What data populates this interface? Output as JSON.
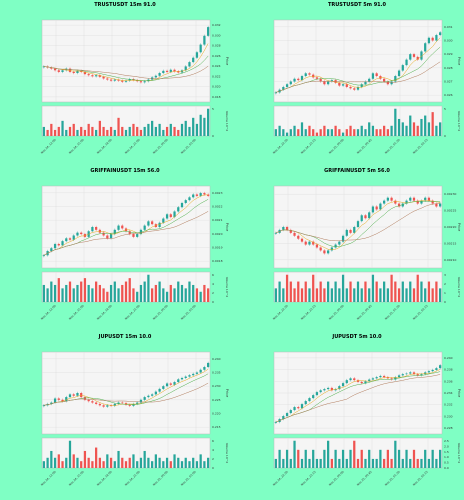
{
  "page": {
    "background": "#7fffc4"
  },
  "colors": {
    "up": "#26a69a",
    "down": "#ef5350",
    "ma1": "#e6a817",
    "ma2": "#4daf4a",
    "ma3": "#b07a5a",
    "plot_bg": "#f5f5f5",
    "grid": "#dddddd"
  },
  "axis_labels": {
    "price": "Price",
    "volume": "Volume 10^4"
  },
  "chart_data": [
    {
      "type": "candlestick",
      "title": "TRUSTUSDT 15m 91.0",
      "x_ticks": [
        "Nov 24, 12:00",
        "Nov 24, 15:00",
        "Nov 24, 18:00",
        "Nov 24, 21:00",
        "Nov 25, 00:00",
        "Nov 25, 03:00"
      ],
      "y_ticks": [
        "0.032",
        "0.030",
        "0.028",
        "0.026",
        "0.024",
        "0.022",
        "0.020",
        "0.018"
      ],
      "ylim": [
        0.0175,
        0.0325
      ],
      "volume_ticks": [
        "0",
        "5"
      ],
      "closes": [
        0.024,
        0.0238,
        0.0236,
        0.0233,
        0.023,
        0.0233,
        0.0236,
        0.023,
        0.0228,
        0.0232,
        0.023,
        0.0226,
        0.0224,
        0.0222,
        0.0224,
        0.0221,
        0.0218,
        0.0216,
        0.0214,
        0.0216,
        0.0214,
        0.0212,
        0.0214,
        0.0217,
        0.0215,
        0.0213,
        0.0211,
        0.0213,
        0.0216,
        0.022,
        0.0223,
        0.0228,
        0.0232,
        0.023,
        0.0234,
        0.0231,
        0.0229,
        0.0233,
        0.024,
        0.0248,
        0.0256,
        0.0266,
        0.028,
        0.0296,
        0.0312
      ],
      "volumes": [
        3,
        2,
        4,
        2,
        3,
        5,
        2,
        3,
        4,
        2,
        3,
        2,
        4,
        3,
        2,
        5,
        3,
        2,
        3,
        2,
        6,
        3,
        2,
        3,
        4,
        3,
        2,
        3,
        4,
        5,
        3,
        4,
        2,
        3,
        4,
        3,
        2,
        4,
        5,
        3,
        6,
        4,
        7,
        6,
        9
      ],
      "ylabel": "Price"
    },
    {
      "type": "candlestick",
      "title": "TRUSTUSDT 5m 91.0",
      "x_ticks": [
        "Nov 24, 22:30",
        "Nov 24, 23:15",
        "Nov 25, 00:00",
        "Nov 25, 00:45",
        "Nov 25, 01:30",
        "Nov 25, 02:15"
      ],
      "y_ticks": [
        "0.031",
        "0.030",
        "0.029",
        "0.028",
        "0.027",
        "0.026"
      ],
      "ylim": [
        0.0255,
        0.0315
      ],
      "volume_ticks": [
        "0",
        "5"
      ],
      "closes": [
        0.0262,
        0.0264,
        0.0266,
        0.0268,
        0.027,
        0.0272,
        0.0271,
        0.0274,
        0.0276,
        0.0275,
        0.0273,
        0.0272,
        0.027,
        0.0268,
        0.027,
        0.0271,
        0.0269,
        0.0267,
        0.0268,
        0.0266,
        0.0265,
        0.0264,
        0.0266,
        0.0268,
        0.027,
        0.0272,
        0.0276,
        0.0274,
        0.0272,
        0.027,
        0.0268,
        0.027,
        0.0274,
        0.0278,
        0.0282,
        0.0286,
        0.029,
        0.0288,
        0.0286,
        0.0292,
        0.0298,
        0.0302,
        0.03,
        0.0304,
        0.0306
      ],
      "volumes": [
        2,
        3,
        2,
        1,
        2,
        3,
        2,
        4,
        2,
        3,
        2,
        1,
        2,
        3,
        2,
        2,
        3,
        2,
        1,
        2,
        3,
        2,
        2,
        3,
        2,
        4,
        3,
        2,
        2,
        3,
        2,
        3,
        8,
        5,
        4,
        3,
        6,
        4,
        3,
        5,
        6,
        4,
        7,
        3,
        4
      ],
      "ylabel": "Price"
    },
    {
      "type": "candlestick",
      "title": "GRIFFAINUSDT 15m 56.0",
      "x_ticks": [
        "Nov 24, 12:00",
        "Nov 24, 15:00",
        "Nov 24, 18:00",
        "Nov 24, 21:00",
        "Nov 25, 00:00",
        "Nov 25, 03:00"
      ],
      "y_ticks": [
        "0.0023",
        "0.0022",
        "0.0021",
        "0.0020",
        "0.0019",
        "0.0018"
      ],
      "ylim": [
        0.00176,
        0.00234
      ],
      "volume_ticks": [
        "0",
        "2",
        "4",
        "6"
      ],
      "closes": [
        0.00185,
        0.00188,
        0.0019,
        0.00193,
        0.00192,
        0.00195,
        0.00197,
        0.00196,
        0.00199,
        0.00201,
        0.002,
        0.00198,
        0.00202,
        0.00205,
        0.00203,
        0.00201,
        0.00199,
        0.00197,
        0.002,
        0.00203,
        0.00206,
        0.00204,
        0.00202,
        0.002,
        0.00198,
        0.002,
        0.00203,
        0.00206,
        0.00209,
        0.00207,
        0.00205,
        0.00208,
        0.00211,
        0.00214,
        0.00212,
        0.00216,
        0.00219,
        0.00222,
        0.00224,
        0.00226,
        0.00228,
        0.00227,
        0.00229,
        0.00228,
        0.00227
      ],
      "volumes": [
        5,
        4,
        6,
        5,
        7,
        4,
        5,
        6,
        4,
        5,
        6,
        7,
        5,
        4,
        6,
        5,
        4,
        3,
        5,
        6,
        4,
        5,
        6,
        7,
        4,
        3,
        5,
        6,
        8,
        4,
        5,
        6,
        4,
        3,
        5,
        4,
        6,
        5,
        4,
        6,
        5,
        4,
        3,
        5,
        4
      ],
      "ylabel": "Price"
    },
    {
      "type": "candlestick",
      "title": "GRIFFAINUSDT 5m 56.0",
      "x_ticks": [
        "Nov 24, 22:30",
        "Nov 24, 23:15",
        "Nov 25, 00:00",
        "Nov 25, 00:45",
        "Nov 25, 01:30",
        "Nov 25, 02:15"
      ],
      "y_ticks": [
        "0.00230",
        "0.00225",
        "0.00220",
        "0.00215",
        "0.00210"
      ],
      "ylim": [
        0.00206,
        0.00234
      ],
      "volume_ticks": [
        "0",
        "1",
        "2",
        "3"
      ],
      "closes": [
        0.00218,
        0.00219,
        0.0022,
        0.00219,
        0.00218,
        0.00217,
        0.00216,
        0.00215,
        0.00214,
        0.00215,
        0.00214,
        0.00213,
        0.00212,
        0.00211,
        0.00212,
        0.00213,
        0.00214,
        0.00215,
        0.00217,
        0.00219,
        0.00218,
        0.0022,
        0.00222,
        0.00224,
        0.00223,
        0.00225,
        0.00227,
        0.00226,
        0.00228,
        0.00229,
        0.0023,
        0.00229,
        0.00228,
        0.00227,
        0.00228,
        0.00229,
        0.0023,
        0.00229,
        0.00228,
        0.00229,
        0.0023,
        0.00229,
        0.00228,
        0.00227,
        0.00228
      ],
      "volumes": [
        2,
        3,
        2,
        4,
        3,
        2,
        3,
        2,
        3,
        2,
        4,
        2,
        3,
        2,
        3,
        2,
        3,
        2,
        4,
        2,
        3,
        2,
        3,
        2,
        3,
        2,
        4,
        3,
        2,
        3,
        2,
        4,
        3,
        2,
        3,
        2,
        3,
        2,
        4,
        3,
        2,
        3,
        2,
        3,
        2
      ],
      "ylabel": "Price"
    },
    {
      "type": "candlestick",
      "title": "JUPUSDT 15m 10.0",
      "x_ticks": [
        "Nov 24, 12:00",
        "Nov 24, 15:00",
        "Nov 24, 18:00",
        "Nov 24, 21:00",
        "Nov 25, 00:00",
        "Nov 25, 03:00"
      ],
      "y_ticks": [
        "0.240",
        "0.235",
        "0.230",
        "0.225",
        "0.220",
        "0.215"
      ],
      "ylim": [
        0.2125,
        0.2425
      ],
      "volume_ticks": [
        "0",
        "2",
        "4",
        "6"
      ],
      "closes": [
        0.223,
        0.2235,
        0.224,
        0.2255,
        0.225,
        0.2245,
        0.226,
        0.227,
        0.2265,
        0.2275,
        0.226,
        0.225,
        0.2245,
        0.224,
        0.2235,
        0.223,
        0.2225,
        0.223,
        0.2228,
        0.2235,
        0.224,
        0.2238,
        0.2232,
        0.2228,
        0.2235,
        0.224,
        0.225,
        0.226,
        0.2265,
        0.227,
        0.228,
        0.229,
        0.23,
        0.231,
        0.2305,
        0.2315,
        0.2325,
        0.233,
        0.2335,
        0.234,
        0.2345,
        0.235,
        0.236,
        0.237,
        0.2385
      ],
      "volumes": [
        2,
        3,
        5,
        3,
        4,
        2,
        3,
        8,
        4,
        3,
        2,
        5,
        3,
        2,
        6,
        3,
        2,
        4,
        3,
        2,
        5,
        3,
        2,
        3,
        4,
        2,
        3,
        5,
        3,
        2,
        4,
        3,
        2,
        3,
        2,
        4,
        3,
        2,
        3,
        2,
        3,
        2,
        4,
        2,
        3
      ],
      "ylabel": "Price"
    },
    {
      "type": "candlestick",
      "title": "JUPUSDT 5m 10.0",
      "x_ticks": [
        "Nov 24, 22:30",
        "Nov 24, 23:15",
        "Nov 25, 00:00",
        "Nov 25, 00:45",
        "Nov 25, 01:30",
        "Nov 25, 02:15"
      ],
      "y_ticks": [
        "0.240",
        "0.238",
        "0.236",
        "0.234",
        "0.232",
        "0.230",
        "0.228"
      ],
      "ylim": [
        0.2275,
        0.2412
      ],
      "volume_ticks": [
        "0.0",
        "0.5",
        "1.0",
        "1.5",
        "2.0",
        "2.5"
      ],
      "closes": [
        0.2295,
        0.23,
        0.2305,
        0.231,
        0.2315,
        0.232,
        0.2318,
        0.2325,
        0.233,
        0.2335,
        0.234,
        0.2345,
        0.2348,
        0.235,
        0.2352,
        0.2348,
        0.235,
        0.2355,
        0.236,
        0.2365,
        0.2368,
        0.2365,
        0.2362,
        0.236,
        0.2363,
        0.2366,
        0.2368,
        0.237,
        0.2372,
        0.237,
        0.2368,
        0.2366,
        0.237,
        0.2373,
        0.2375,
        0.2376,
        0.2378,
        0.2375,
        0.2373,
        0.2375,
        0.2378,
        0.238,
        0.2382,
        0.2385,
        0.239
      ],
      "volumes": [
        1,
        2,
        1,
        2,
        1,
        3,
        2,
        1,
        2,
        1,
        2,
        1,
        1,
        2,
        3,
        1,
        2,
        1,
        2,
        1,
        2,
        3,
        1,
        2,
        1,
        2,
        1,
        1,
        2,
        1,
        2,
        1,
        3,
        2,
        1,
        2,
        1,
        2,
        1,
        1,
        2,
        1,
        2,
        1,
        2
      ],
      "ylabel": "Price"
    }
  ]
}
